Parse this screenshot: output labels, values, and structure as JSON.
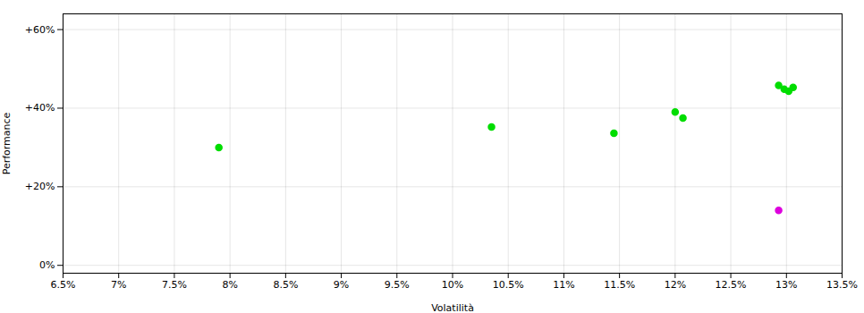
{
  "chart_data": {
    "type": "scatter",
    "xlabel": "Volatilità",
    "ylabel": "Performance",
    "xlim": [
      0.065,
      0.135
    ],
    "ylim": [
      -0.02,
      0.64
    ],
    "xticks": [
      {
        "value": 0.065,
        "label": "6.5%"
      },
      {
        "value": 0.07,
        "label": "7%"
      },
      {
        "value": 0.075,
        "label": "7.5%"
      },
      {
        "value": 0.08,
        "label": "8%"
      },
      {
        "value": 0.085,
        "label": "8.5%"
      },
      {
        "value": 0.09,
        "label": "9%"
      },
      {
        "value": 0.095,
        "label": "9.5%"
      },
      {
        "value": 0.1,
        "label": "10%"
      },
      {
        "value": 0.105,
        "label": "10.5%"
      },
      {
        "value": 0.11,
        "label": "11%"
      },
      {
        "value": 0.115,
        "label": "11.5%"
      },
      {
        "value": 0.12,
        "label": "12%"
      },
      {
        "value": 0.125,
        "label": "12.5%"
      },
      {
        "value": 0.13,
        "label": "13%"
      },
      {
        "value": 0.135,
        "label": "13.5%"
      }
    ],
    "yticks": [
      {
        "value": 0.0,
        "label": "0%"
      },
      {
        "value": 0.2,
        "label": "+20%"
      },
      {
        "value": 0.4,
        "label": "+40%"
      },
      {
        "value": 0.6,
        "label": "+60%"
      }
    ],
    "grid": true,
    "series": [
      {
        "color": "#00dd00",
        "x": [
          0.079,
          0.1035,
          0.1145,
          0.12,
          0.1207,
          0.1293,
          0.1298,
          0.1302,
          0.1306
        ],
        "values": [
          0.3,
          0.352,
          0.336,
          0.39,
          0.375,
          0.458,
          0.448,
          0.443,
          0.453
        ]
      },
      {
        "color": "#dd00dd",
        "x": [
          0.1293
        ],
        "values": [
          0.14
        ]
      }
    ]
  }
}
